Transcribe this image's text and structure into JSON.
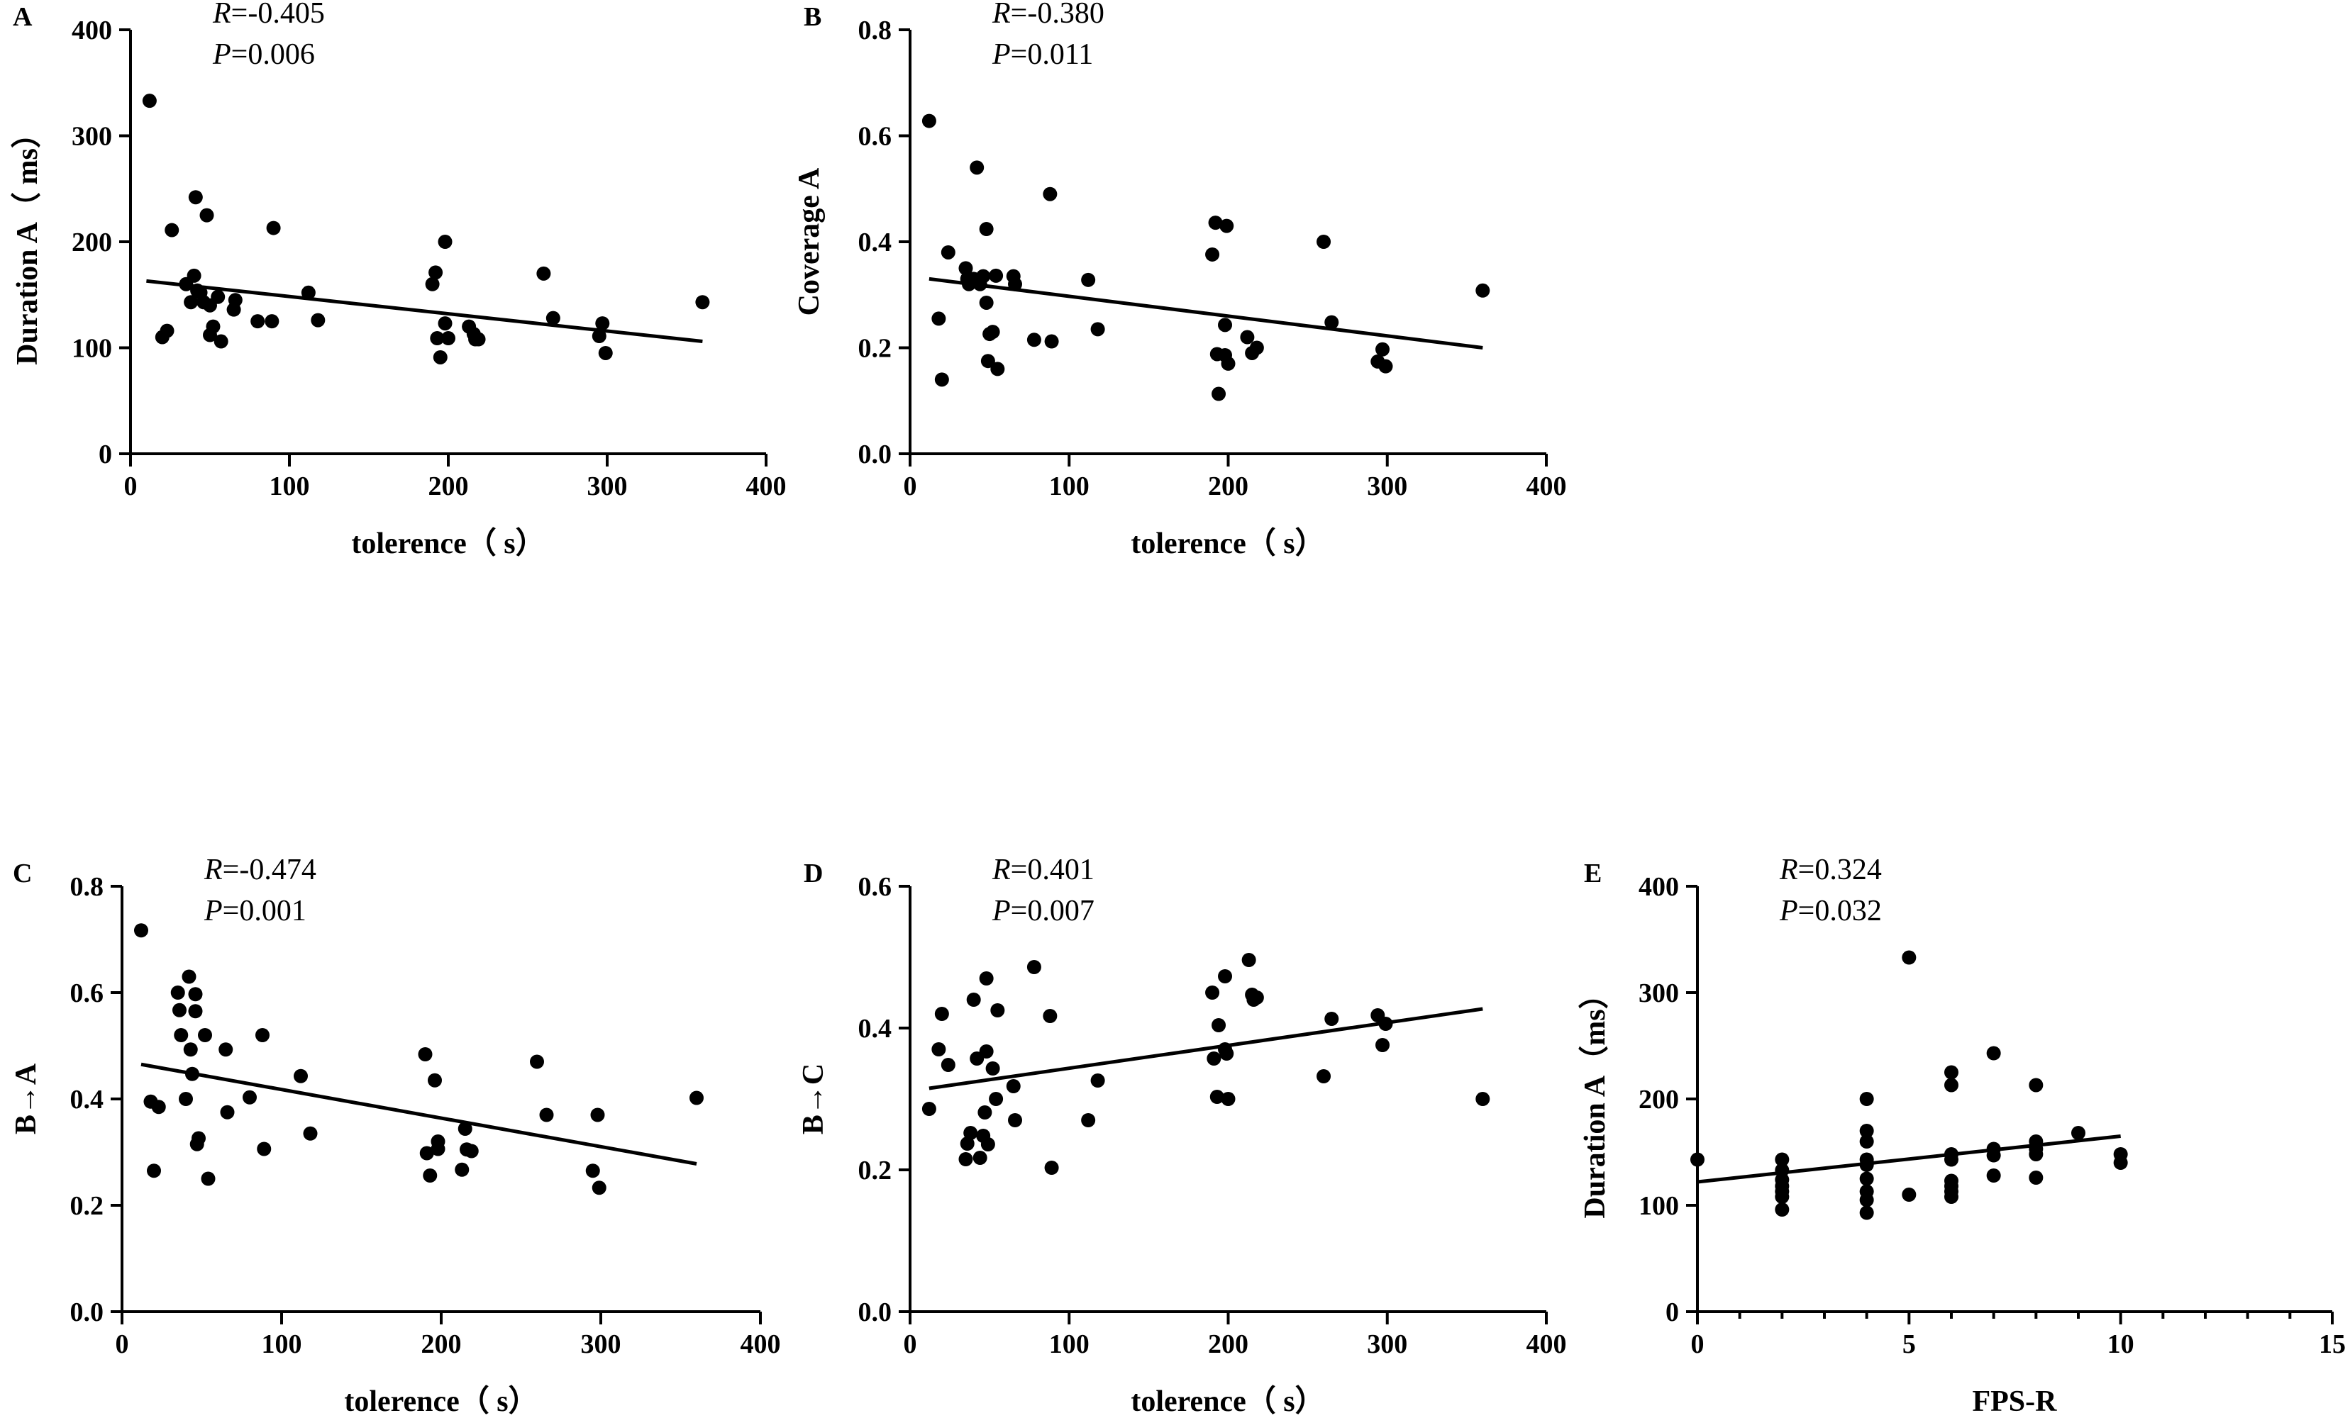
{
  "chart_data": [
    {
      "id": "A",
      "type": "scatter",
      "panel_label": "A",
      "xlabel": "tolerence（ s）",
      "ylabel": "Duration A（ ms）",
      "xlim": [
        0,
        400
      ],
      "ylim": [
        0,
        400
      ],
      "xticks": [
        "0",
        "100",
        "200",
        "300",
        "400"
      ],
      "yticks": [
        "0",
        "100",
        "200",
        "300",
        "400"
      ],
      "stats": {
        "r_key": "R",
        "r_value": "=-0.405",
        "p_key": "P",
        "p_value": "=0.006"
      },
      "points": [
        [
          12,
          333
        ],
        [
          20,
          110
        ],
        [
          23,
          116
        ],
        [
          26,
          211
        ],
        [
          35,
          160
        ],
        [
          38,
          143
        ],
        [
          40,
          168
        ],
        [
          41,
          242
        ],
        [
          42,
          154
        ],
        [
          44,
          152
        ],
        [
          46,
          143
        ],
        [
          48,
          225
        ],
        [
          50,
          140
        ],
        [
          50,
          112
        ],
        [
          52,
          120
        ],
        [
          55,
          148
        ],
        [
          57,
          106
        ],
        [
          65,
          136
        ],
        [
          66,
          145
        ],
        [
          80,
          125
        ],
        [
          89,
          125
        ],
        [
          90,
          213
        ],
        [
          112,
          152
        ],
        [
          118,
          126
        ],
        [
          190,
          160
        ],
        [
          192,
          171
        ],
        [
          193,
          109
        ],
        [
          195,
          91
        ],
        [
          198,
          123
        ],
        [
          198,
          200
        ],
        [
          200,
          109
        ],
        [
          213,
          120
        ],
        [
          216,
          113
        ],
        [
          217,
          108
        ],
        [
          219,
          108
        ],
        [
          260,
          170
        ],
        [
          266,
          128
        ],
        [
          295,
          111
        ],
        [
          297,
          123
        ],
        [
          299,
          95
        ],
        [
          360,
          143
        ]
      ],
      "regression": {
        "x": [
          10,
          360
        ],
        "y": [
          163,
          106
        ]
      }
    },
    {
      "id": "B",
      "type": "scatter",
      "panel_label": "B",
      "xlabel": "tolerence（ s）",
      "ylabel": "Coverage A",
      "xlim": [
        0,
        400
      ],
      "ylim": [
        0,
        0.8
      ],
      "xticks": [
        "0",
        "100",
        "200",
        "300",
        "400"
      ],
      "yticks": [
        "0.0",
        "0.2",
        "0.4",
        "0.6",
        "0.8"
      ],
      "stats": {
        "r_key": "R",
        "r_value": "=-0.380",
        "p_key": "P",
        "p_value": "=0.011"
      },
      "points": [
        [
          12,
          0.628
        ],
        [
          18,
          0.255
        ],
        [
          20,
          0.14
        ],
        [
          24,
          0.38
        ],
        [
          35,
          0.35
        ],
        [
          36,
          0.33
        ],
        [
          37,
          0.32
        ],
        [
          40,
          0.33
        ],
        [
          42,
          0.54
        ],
        [
          44,
          0.32
        ],
        [
          46,
          0.335
        ],
        [
          48,
          0.424
        ],
        [
          48,
          0.285
        ],
        [
          49,
          0.175
        ],
        [
          50,
          0.226
        ],
        [
          52,
          0.23
        ],
        [
          54,
          0.336
        ],
        [
          55,
          0.16
        ],
        [
          65,
          0.335
        ],
        [
          66,
          0.32
        ],
        [
          78,
          0.215
        ],
        [
          88,
          0.49
        ],
        [
          89,
          0.212
        ],
        [
          112,
          0.328
        ],
        [
          118,
          0.235
        ],
        [
          190,
          0.376
        ],
        [
          192,
          0.436
        ],
        [
          193,
          0.188
        ],
        [
          194,
          0.113
        ],
        [
          198,
          0.243
        ],
        [
          198,
          0.186
        ],
        [
          199,
          0.43
        ],
        [
          200,
          0.17
        ],
        [
          212,
          0.22
        ],
        [
          215,
          0.19
        ],
        [
          218,
          0.2
        ],
        [
          260,
          0.4
        ],
        [
          265,
          0.248
        ],
        [
          294,
          0.174
        ],
        [
          297,
          0.197
        ],
        [
          299,
          0.165
        ],
        [
          360,
          0.308
        ]
      ],
      "regression": {
        "x": [
          12,
          360
        ],
        "y": [
          0.33,
          0.2
        ]
      }
    },
    {
      "id": "C",
      "type": "scatter",
      "panel_label": "C",
      "xlabel": "tolerence（ s）",
      "ylabel": "B→A",
      "xlim": [
        0,
        400
      ],
      "ylim": [
        0,
        0.8
      ],
      "xticks": [
        "0",
        "100",
        "200",
        "300",
        "400"
      ],
      "yticks": [
        "0.0",
        "0.2",
        "0.4",
        "0.6",
        "0.8"
      ],
      "stats": {
        "r_key": "R",
        "r_value": "=-0.474",
        "p_key": "P",
        "p_value": "=0.001"
      },
      "points": [
        [
          12,
          0.717
        ],
        [
          18,
          0.395
        ],
        [
          20,
          0.265
        ],
        [
          23,
          0.385
        ],
        [
          35,
          0.6
        ],
        [
          36,
          0.567
        ],
        [
          37,
          0.52
        ],
        [
          40,
          0.4
        ],
        [
          42,
          0.63
        ],
        [
          43,
          0.493
        ],
        [
          44,
          0.447
        ],
        [
          46,
          0.597
        ],
        [
          46,
          0.565
        ],
        [
          47,
          0.315
        ],
        [
          48,
          0.326
        ],
        [
          52,
          0.52
        ],
        [
          54,
          0.25
        ],
        [
          65,
          0.493
        ],
        [
          66,
          0.375
        ],
        [
          80,
          0.403
        ],
        [
          88,
          0.52
        ],
        [
          89,
          0.306
        ],
        [
          112,
          0.443
        ],
        [
          118,
          0.335
        ],
        [
          190,
          0.484
        ],
        [
          191,
          0.298
        ],
        [
          193,
          0.256
        ],
        [
          196,
          0.435
        ],
        [
          198,
          0.32
        ],
        [
          198,
          0.306
        ],
        [
          213,
          0.267
        ],
        [
          215,
          0.344
        ],
        [
          216,
          0.305
        ],
        [
          219,
          0.302
        ],
        [
          260,
          0.47
        ],
        [
          266,
          0.37
        ],
        [
          295,
          0.265
        ],
        [
          298,
          0.37
        ],
        [
          299,
          0.233
        ],
        [
          360,
          0.402
        ]
      ],
      "regression": {
        "x": [
          12,
          360
        ],
        "y": [
          0.465,
          0.278
        ]
      }
    },
    {
      "id": "D",
      "type": "scatter",
      "panel_label": "D",
      "xlabel": "tolerence（ s）",
      "ylabel": "B→C",
      "xlim": [
        0,
        400
      ],
      "ylim": [
        0,
        0.6
      ],
      "xticks": [
        "0",
        "100",
        "200",
        "300",
        "400"
      ],
      "yticks": [
        "0.0",
        "0.2",
        "0.4",
        "0.6"
      ],
      "stats": {
        "r_key": "R",
        "r_value": "=0.401",
        "p_key": "P",
        "p_value": "=0.007"
      },
      "points": [
        [
          12,
          0.286
        ],
        [
          18,
          0.37
        ],
        [
          20,
          0.42
        ],
        [
          24,
          0.348
        ],
        [
          35,
          0.215
        ],
        [
          36,
          0.237
        ],
        [
          38,
          0.252
        ],
        [
          40,
          0.44
        ],
        [
          42,
          0.357
        ],
        [
          44,
          0.217
        ],
        [
          46,
          0.248
        ],
        [
          47,
          0.281
        ],
        [
          48,
          0.367
        ],
        [
          48,
          0.47
        ],
        [
          49,
          0.236
        ],
        [
          52,
          0.343
        ],
        [
          54,
          0.3
        ],
        [
          55,
          0.425
        ],
        [
          65,
          0.318
        ],
        [
          66,
          0.27
        ],
        [
          78,
          0.486
        ],
        [
          88,
          0.417
        ],
        [
          89,
          0.203
        ],
        [
          112,
          0.27
        ],
        [
          118,
          0.326
        ],
        [
          190,
          0.45
        ],
        [
          191,
          0.357
        ],
        [
          193,
          0.303
        ],
        [
          194,
          0.404
        ],
        [
          198,
          0.37
        ],
        [
          198,
          0.473
        ],
        [
          199,
          0.364
        ],
        [
          200,
          0.3
        ],
        [
          213,
          0.496
        ],
        [
          215,
          0.447
        ],
        [
          216,
          0.44
        ],
        [
          218,
          0.443
        ],
        [
          260,
          0.332
        ],
        [
          265,
          0.413
        ],
        [
          294,
          0.418
        ],
        [
          297,
          0.376
        ],
        [
          299,
          0.406
        ],
        [
          360,
          0.3
        ]
      ],
      "regression": {
        "x": [
          12,
          360
        ],
        "y": [
          0.315,
          0.427
        ]
      }
    },
    {
      "id": "E",
      "type": "scatter",
      "panel_label": "E",
      "xlabel": "FPS-R",
      "ylabel": "Duration A（ms）",
      "xlim": [
        0,
        15
      ],
      "ylim": [
        0,
        400
      ],
      "xticks": [
        "0",
        "5",
        "10",
        "15"
      ],
      "yticks": [
        "0",
        "100",
        "200",
        "300",
        "400"
      ],
      "stats": {
        "r_key": "R",
        "r_value": "=0.324",
        "p_key": "P",
        "p_value": "=0.032"
      },
      "points": [
        [
          0,
          143
        ],
        [
          2,
          143
        ],
        [
          2,
          133
        ],
        [
          2,
          124
        ],
        [
          2,
          118
        ],
        [
          2,
          113
        ],
        [
          2,
          108
        ],
        [
          2,
          96
        ],
        [
          4,
          200
        ],
        [
          4,
          170
        ],
        [
          4,
          160
        ],
        [
          4,
          143
        ],
        [
          4,
          138
        ],
        [
          4,
          125
        ],
        [
          4,
          113
        ],
        [
          4,
          105
        ],
        [
          4,
          93
        ],
        [
          5,
          333
        ],
        [
          5,
          110
        ],
        [
          6,
          225
        ],
        [
          6,
          213
        ],
        [
          6,
          148
        ],
        [
          6,
          143
        ],
        [
          6,
          123
        ],
        [
          6,
          118
        ],
        [
          6,
          113
        ],
        [
          6,
          108
        ],
        [
          7,
          243
        ],
        [
          7,
          153
        ],
        [
          7,
          147
        ],
        [
          7,
          128
        ],
        [
          8,
          213
        ],
        [
          8,
          160
        ],
        [
          8,
          153
        ],
        [
          8,
          148
        ],
        [
          8,
          126
        ],
        [
          9,
          168
        ],
        [
          10,
          148
        ],
        [
          10,
          140
        ]
      ],
      "regression": {
        "x": [
          0,
          10
        ],
        "y": [
          122,
          165
        ]
      }
    }
  ]
}
